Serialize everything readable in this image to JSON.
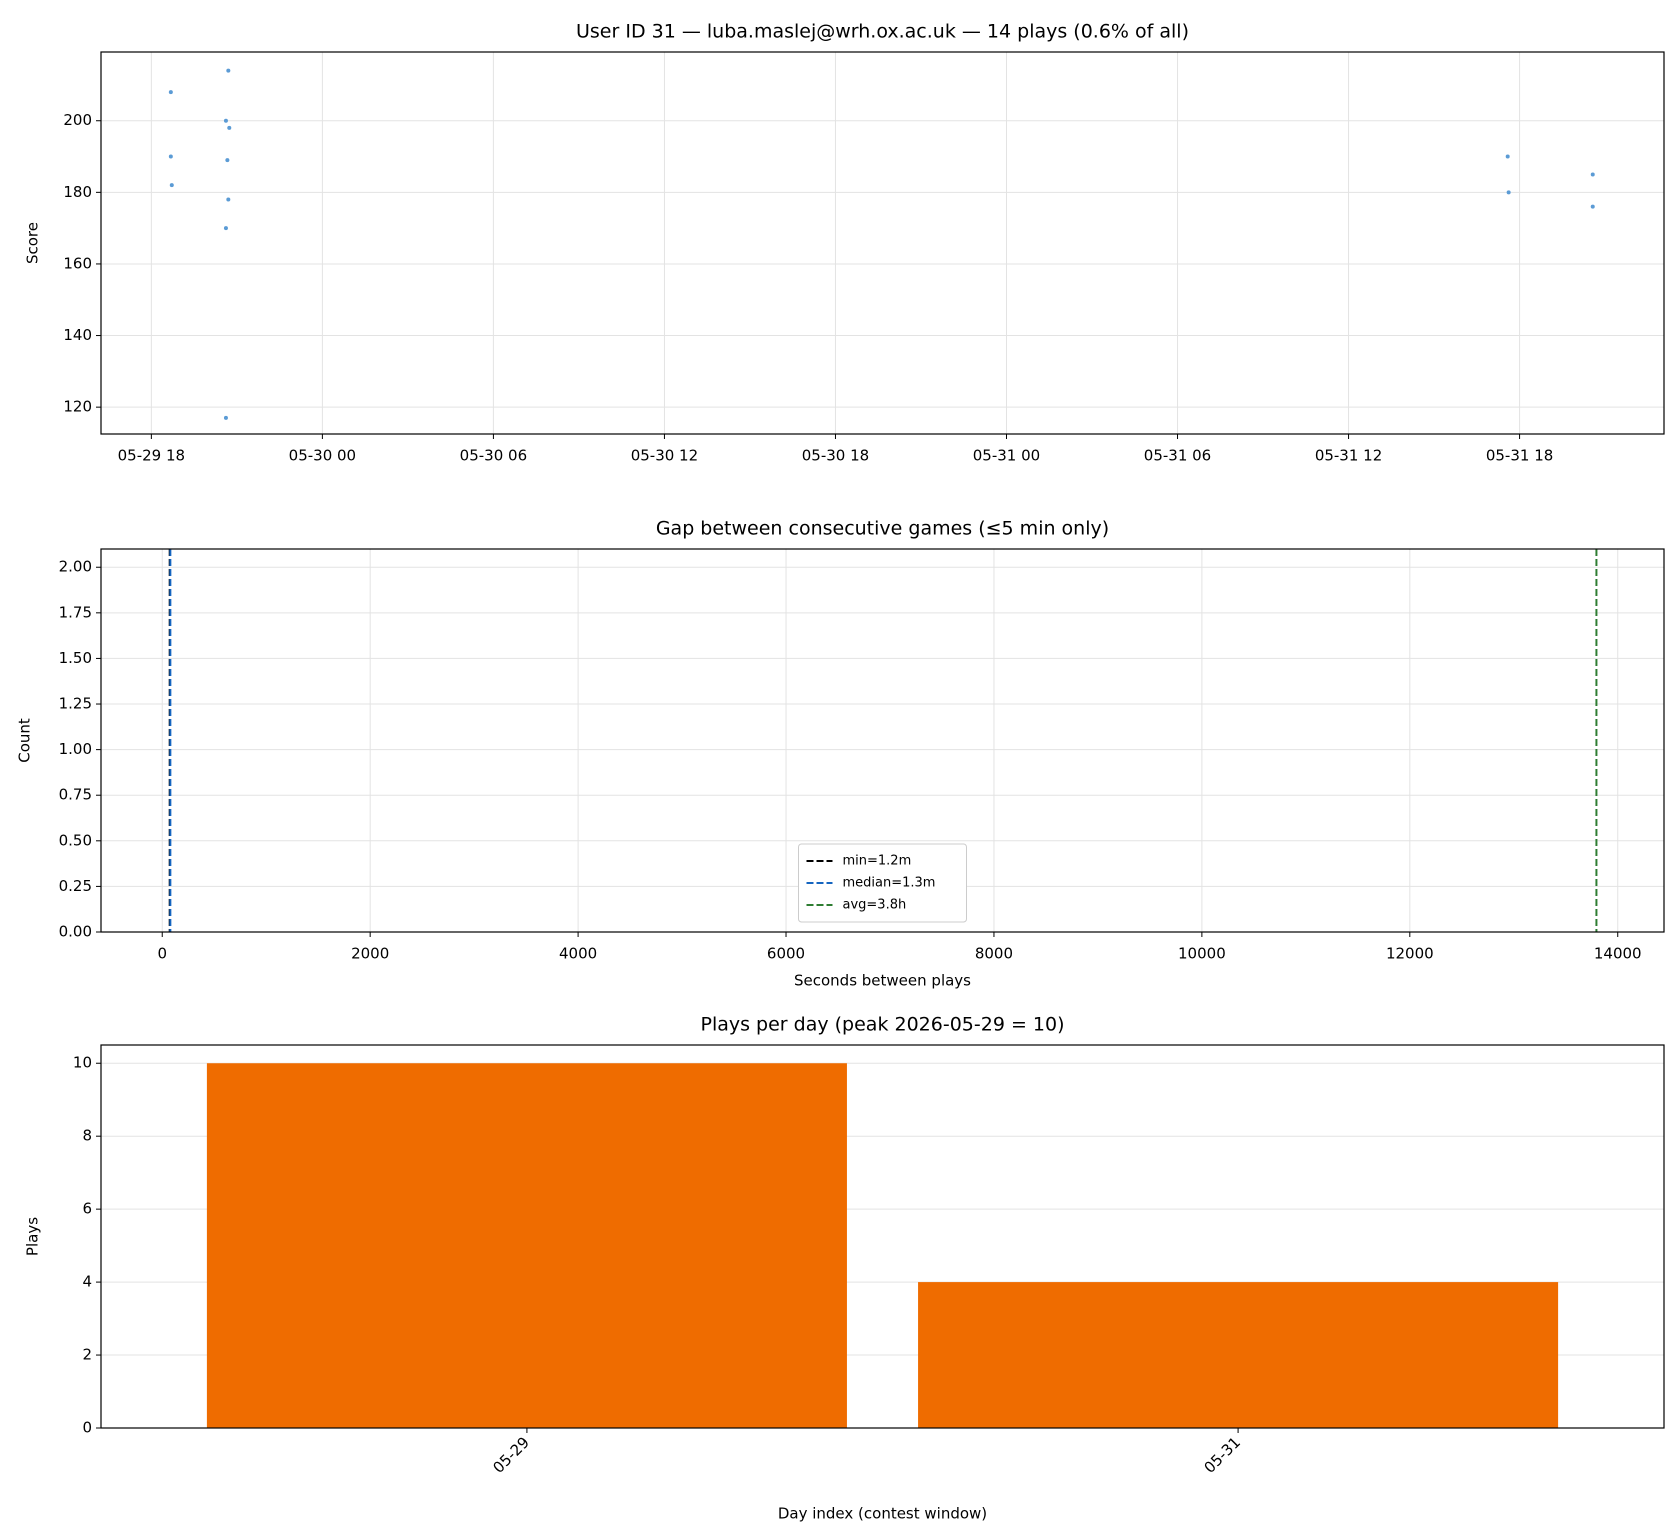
{
  "chart_data": [
    {
      "type": "scatter",
      "title": "User ID 31 — luba.maslej@wrh.ox.ac.uk — 14 plays (0.6% of all)",
      "ylabel": "Score",
      "series": [
        {
          "color": "#5b9bd5",
          "x": [
            "05-29 18:41",
            "05-29 18:41",
            "05-29 18:43",
            "05-29 20:37",
            "05-29 20:42",
            "05-29 20:44",
            "05-29 20:40",
            "05-29 20:42",
            "05-29 20:37",
            "05-29 20:37",
            "05-31 17:35",
            "05-31 17:37",
            "05-31 20:34",
            "05-31 20:34"
          ],
          "values": [
            208,
            190,
            182,
            200,
            214,
            198,
            189,
            178,
            170,
            117,
            190,
            180,
            185,
            176
          ]
        }
      ],
      "xlim": [
        "05-29 16:14",
        "05-31 23:04"
      ],
      "xticks": [
        {
          "value": "05-29 18:00",
          "label": "05-29 18"
        },
        {
          "value": "05-30 00:00",
          "label": "05-30 00"
        },
        {
          "value": "05-30 06:00",
          "label": "05-30 06"
        },
        {
          "value": "05-30 12:00",
          "label": "05-30 12"
        },
        {
          "value": "05-30 18:00",
          "label": "05-30 18"
        },
        {
          "value": "05-31 00:00",
          "label": "05-31 00"
        },
        {
          "value": "05-31 06:00",
          "label": "05-31 06"
        },
        {
          "value": "05-31 12:00",
          "label": "05-31 12"
        },
        {
          "value": "05-31 18:00",
          "label": "05-31 18"
        }
      ],
      "ylim": [
        112.5,
        219.2
      ],
      "yticks": [
        120,
        140,
        160,
        180,
        200
      ],
      "grid": true
    },
    {
      "type": "vlines",
      "title": "Gap between consecutive games (≤5 min only)",
      "xlabel": "Seconds between plays",
      "ylabel": "Count",
      "lines": [
        {
          "name": "min=1.2m",
          "color": "#000000",
          "x": 72
        },
        {
          "name": "median=1.3m",
          "color": "#1565c0",
          "x": 78
        },
        {
          "name": "avg=3.8h",
          "color": "#2e7d32",
          "x": 13795
        }
      ],
      "xlim": [
        -589,
        14445
      ],
      "xticks": [
        0,
        2000,
        4000,
        6000,
        8000,
        10000,
        12000,
        14000
      ],
      "ylim": [
        0,
        2.1
      ],
      "yticks": [
        {
          "value": 0,
          "label": "0.00"
        },
        {
          "value": 0.25,
          "label": "0.25"
        },
        {
          "value": 0.5,
          "label": "0.50"
        },
        {
          "value": 0.75,
          "label": "0.75"
        },
        {
          "value": 1,
          "label": "1.00"
        },
        {
          "value": 1.25,
          "label": "1.25"
        },
        {
          "value": 1.5,
          "label": "1.50"
        },
        {
          "value": 1.75,
          "label": "1.75"
        },
        {
          "value": 2,
          "label": "2.00"
        }
      ],
      "grid": true,
      "legend": "lower center"
    },
    {
      "type": "bar",
      "title": "Plays per day (peak 2026-05-29 = 10)",
      "xlabel": "Day index (contest window)",
      "ylabel": "Plays",
      "categories": [
        "05-29",
        "05-31"
      ],
      "values": [
        10,
        4
      ],
      "color": "#ef6c00",
      "ylim": [
        0,
        10.5
      ],
      "yticks": [
        0,
        2,
        4,
        6,
        8,
        10
      ],
      "grid": true
    }
  ]
}
